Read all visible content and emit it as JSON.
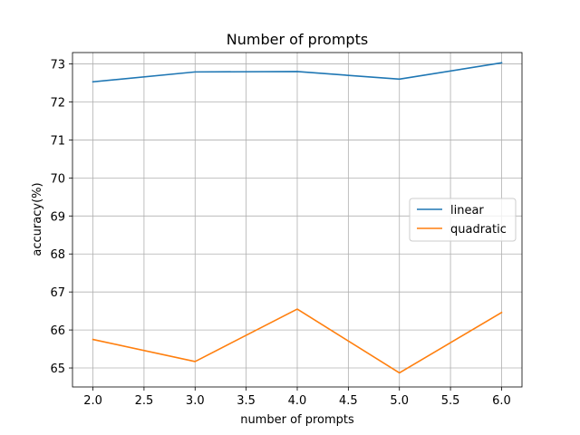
{
  "chart_data": {
    "type": "line",
    "title": "Number of prompts",
    "xlabel": "number of prompts",
    "ylabel": "accuracy(%)",
    "xlim": [
      1.8,
      6.2
    ],
    "ylim": [
      64.5,
      73.3
    ],
    "xticks": [
      2.0,
      2.5,
      3.0,
      3.5,
      4.0,
      4.5,
      5.0,
      5.5,
      6.0
    ],
    "xtick_labels": [
      "2.0",
      "2.5",
      "3.0",
      "3.5",
      "4.0",
      "4.5",
      "5.0",
      "5.5",
      "6.0"
    ],
    "yticks": [
      65,
      66,
      67,
      68,
      69,
      70,
      71,
      72,
      73
    ],
    "ytick_labels": [
      "65",
      "66",
      "67",
      "68",
      "69",
      "70",
      "71",
      "72",
      "73"
    ],
    "grid": true,
    "legend_position": "center-right",
    "x": [
      2,
      3,
      4,
      5,
      6
    ],
    "series": [
      {
        "name": "linear",
        "color": "#1f77b4",
        "values": [
          72.53,
          72.79,
          72.8,
          72.6,
          73.03
        ]
      },
      {
        "name": "quadratic",
        "color": "#ff7f0e",
        "values": [
          65.75,
          65.17,
          66.55,
          64.87,
          66.46
        ]
      }
    ]
  }
}
